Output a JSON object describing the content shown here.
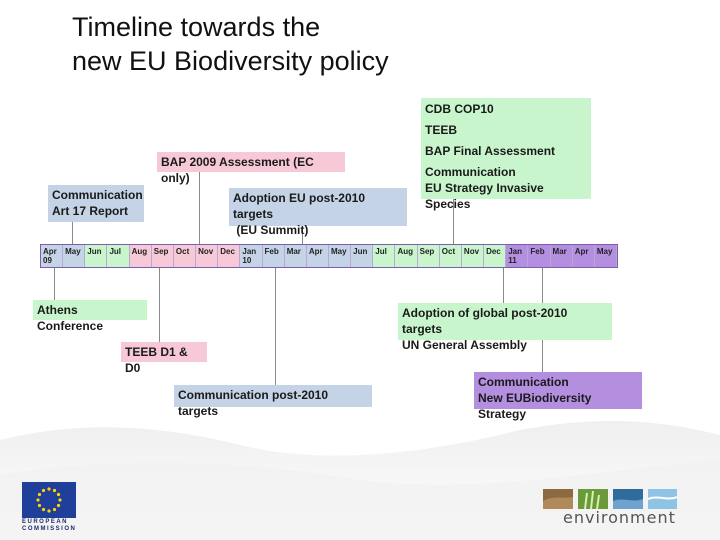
{
  "title": {
    "line1": "Timeline towards the",
    "line2": "new EU Biodiversity policy"
  },
  "months": [
    {
      "m": "Apr",
      "y": "09",
      "color": "#c4d3e6"
    },
    {
      "m": "May",
      "y": "",
      "color": "#c4d3e6"
    },
    {
      "m": "Jun",
      "y": "",
      "color": "#c9f5cc"
    },
    {
      "m": "Jul",
      "y": "",
      "color": "#c9f5cc"
    },
    {
      "m": "Aug",
      "y": "",
      "color": "#f7c8d5"
    },
    {
      "m": "Sep",
      "y": "",
      "color": "#f7c8d5"
    },
    {
      "m": "Oct",
      "y": "",
      "color": "#f7c8d5"
    },
    {
      "m": "Nov",
      "y": "",
      "color": "#f7c8d5"
    },
    {
      "m": "Dec",
      "y": "",
      "color": "#f7c8d5"
    },
    {
      "m": "Jan",
      "y": "10",
      "color": "#c4d3e6"
    },
    {
      "m": "Feb",
      "y": "",
      "color": "#c4d3e6"
    },
    {
      "m": "Mar",
      "y": "",
      "color": "#c4d3e6"
    },
    {
      "m": "Apr",
      "y": "",
      "color": "#c4d3e6"
    },
    {
      "m": "May",
      "y": "",
      "color": "#c4d3e6"
    },
    {
      "m": "Jun",
      "y": "",
      "color": "#c4d3e6"
    },
    {
      "m": "Jul",
      "y": "",
      "color": "#c9f5cc"
    },
    {
      "m": "Aug",
      "y": "",
      "color": "#c9f5cc"
    },
    {
      "m": "Sep",
      "y": "",
      "color": "#c9f5cc"
    },
    {
      "m": "Oct",
      "y": "",
      "color": "#c9f5cc"
    },
    {
      "m": "Nov",
      "y": "",
      "color": "#c9f5cc"
    },
    {
      "m": "Dec",
      "y": "",
      "color": "#c9f5cc"
    },
    {
      "m": "Jan",
      "y": "11",
      "color": "#b48fe0"
    },
    {
      "m": "Feb",
      "y": "",
      "color": "#b48fe0"
    },
    {
      "m": "Mar",
      "y": "",
      "color": "#b48fe0"
    },
    {
      "m": "Apr",
      "y": "",
      "color": "#b48fe0"
    },
    {
      "m": "May",
      "y": "",
      "color": "#b48fe0"
    }
  ],
  "events": {
    "cbd": {
      "lines": [
        "CDB COP10",
        "TEEB",
        "BAP Final Assessment",
        "Communication",
        "EU Strategy Invasive Species"
      ],
      "color": "#c9f5cc"
    },
    "bap2009": {
      "lines": [
        "BAP 2009 Assessment (EC only)"
      ],
      "color": "#f7c8d5"
    },
    "comm_art17": {
      "lines": [
        "Communication",
        "Art 17 Report"
      ],
      "color": "#c4d3e6"
    },
    "adoption_eu": {
      "lines": [
        "Adoption EU post-2010 targets",
        " (EU Summit)"
      ],
      "color": "#c4d3e6"
    },
    "athens": {
      "lines": [
        "Athens Conference"
      ],
      "color": "#c9f5cc"
    },
    "teeb_d1": {
      "lines": [
        "TEEB D1 & D0"
      ],
      "color": "#f7c8d5"
    },
    "comm_post2010": {
      "lines": [
        "Communication post-2010 targets"
      ],
      "color": "#c4d3e6"
    },
    "adoption_global": {
      "lines": [
        "Adoption of global post-2010 targets",
        "UN General Assembly"
      ],
      "color": "#c9f5cc"
    },
    "comm_new_strategy": {
      "lines": [
        "Communication",
        "New EUBiodiversity Strategy"
      ],
      "color": "#b48fe0"
    }
  },
  "footer": {
    "eu_line1": "EUROPEAN",
    "eu_line2": "COMMISSION",
    "env_label": "environment",
    "eu_flag_icon": "eu-flag-icon",
    "env_icon": "environment-logo-icon"
  }
}
